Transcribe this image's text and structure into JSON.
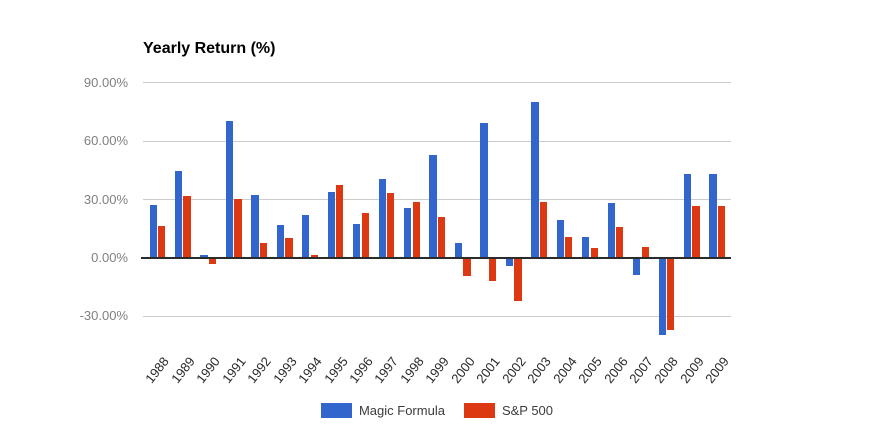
{
  "chart_data": {
    "type": "bar",
    "title": "Yearly Return (%)",
    "categories": [
      "1988",
      "1989",
      "1990",
      "1991",
      "1992",
      "1993",
      "1994",
      "1995",
      "1996",
      "1997",
      "1998",
      "1999",
      "2000",
      "2001",
      "2002",
      "2003",
      "2004",
      "2005",
      "2006",
      "2007",
      "2008",
      "2009",
      "2009"
    ],
    "series": [
      {
        "name": "Magic Formula",
        "color": "#3366cc",
        "values": [
          27.1,
          44.6,
          1.7,
          70.6,
          32.4,
          17.2,
          22.0,
          34.0,
          17.3,
          40.4,
          25.5,
          53.0,
          7.9,
          69.6,
          -4.0,
          79.9,
          19.3,
          11.0,
          28.5,
          -8.8,
          -39.3,
          42.9,
          42.9
        ]
      },
      {
        "name": "S&P 500",
        "color": "#dc3912",
        "values": [
          16.6,
          31.7,
          -3.1,
          30.5,
          7.6,
          10.1,
          1.3,
          37.6,
          23.0,
          33.4,
          28.6,
          21.0,
          -9.1,
          -11.9,
          -22.1,
          28.7,
          10.9,
          4.9,
          15.8,
          5.5,
          -37.0,
          26.5,
          26.5
        ]
      }
    ],
    "y_axis": {
      "tick_labels": [
        "90.00%",
        "60.00%",
        "30.00%",
        "0.00%",
        "-30.00%"
      ],
      "tick_values": [
        90,
        60,
        30,
        0,
        -30
      ],
      "min": -45,
      "max": 90,
      "format": "percent"
    },
    "xlabel": "",
    "ylabel": "",
    "grid": true,
    "legend_position": "bottom-center",
    "colors": {
      "gridline": "#cccccc",
      "zero_axis": "#2b2b2b",
      "y_tick_text": "#808080",
      "x_tick_text": "#2a2a2a",
      "title_text": "#000000",
      "legend_text": "#3c3c3c",
      "background": "#ffffff"
    }
  }
}
